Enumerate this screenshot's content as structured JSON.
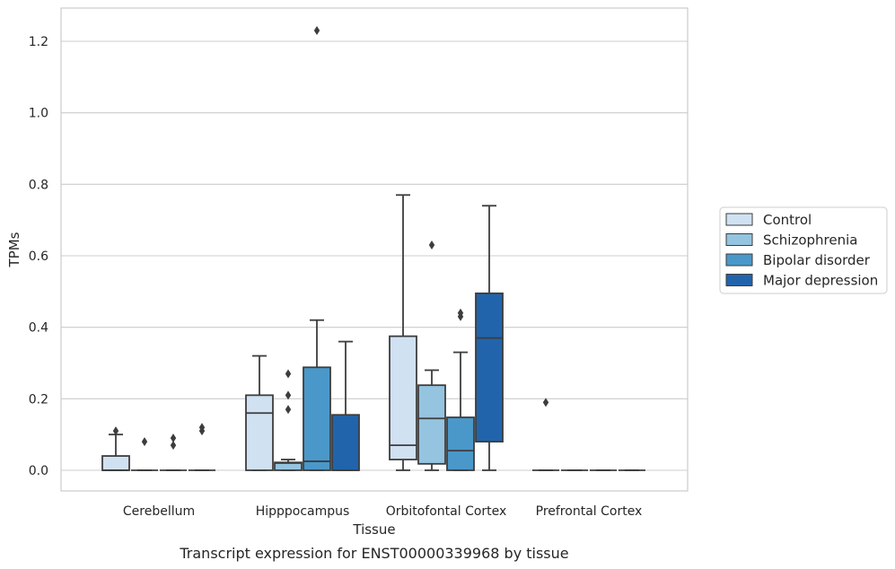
{
  "chart_data": {
    "type": "box",
    "caption": "Transcript expression for ENST00000339968 by tissue",
    "xlabel": "Tissue",
    "ylabel": "TPMs",
    "ylim": [
      -0.06,
      1.29
    ],
    "yticks": [
      "0.0",
      "0.2",
      "0.4",
      "0.6",
      "0.8",
      "1.0",
      "1.2"
    ],
    "ytick_values": [
      0.0,
      0.2,
      0.4,
      0.6,
      0.8,
      1.0,
      1.2
    ],
    "grid": "horizontal",
    "legend_position": "right",
    "categories": [
      "Cerebellum",
      "Hipppocampus",
      "Orbitofontal Cortex",
      "Prefrontal Cortex"
    ],
    "series": [
      {
        "name": "Control",
        "color": "#d0e1f2",
        "boxes": [
          {
            "whislo": 0.0,
            "q1": 0.0,
            "med": 0.0,
            "q3": 0.04,
            "whishi": 0.1,
            "fliers": [
              0.11
            ]
          },
          {
            "whislo": 0.0,
            "q1": 0.0,
            "med": 0.16,
            "q3": 0.21,
            "whishi": 0.32,
            "fliers": []
          },
          {
            "whislo": 0.0,
            "q1": 0.03,
            "med": 0.07,
            "q3": 0.375,
            "whishi": 0.77,
            "fliers": []
          },
          {
            "whislo": 0.0,
            "q1": 0.0,
            "med": 0.0,
            "q3": 0.0,
            "whishi": 0.0,
            "fliers": [
              0.19
            ]
          }
        ]
      },
      {
        "name": "Schizophrenia",
        "color": "#94c4df",
        "boxes": [
          {
            "whislo": 0.0,
            "q1": 0.0,
            "med": 0.0,
            "q3": 0.0,
            "whishi": 0.0,
            "fliers": [
              0.08
            ]
          },
          {
            "whislo": 0.0,
            "q1": 0.0,
            "med": 0.02,
            "q3": 0.022,
            "whishi": 0.03,
            "fliers": [
              0.17,
              0.21,
              0.27
            ]
          },
          {
            "whislo": 0.0,
            "q1": 0.018,
            "med": 0.145,
            "q3": 0.238,
            "whishi": 0.28,
            "fliers": [
              0.63
            ]
          },
          {
            "whislo": 0.0,
            "q1": 0.0,
            "med": 0.0,
            "q3": 0.0,
            "whishi": 0.0,
            "fliers": []
          }
        ]
      },
      {
        "name": "Bipolar disorder",
        "color": "#4a98c9",
        "boxes": [
          {
            "whislo": 0.0,
            "q1": 0.0,
            "med": 0.0,
            "q3": 0.0,
            "whishi": 0.0,
            "fliers": [
              0.07,
              0.09
            ]
          },
          {
            "whislo": 0.0,
            "q1": 0.0,
            "med": 0.025,
            "q3": 0.288,
            "whishi": 0.42,
            "fliers": [
              1.23
            ]
          },
          {
            "whislo": 0.0,
            "q1": 0.0,
            "med": 0.055,
            "q3": 0.148,
            "whishi": 0.33,
            "fliers": [
              0.43,
              0.44
            ]
          },
          {
            "whislo": 0.0,
            "q1": 0.0,
            "med": 0.0,
            "q3": 0.0,
            "whishi": 0.0,
            "fliers": []
          }
        ]
      },
      {
        "name": "Major depression",
        "color": "#2164ab",
        "boxes": [
          {
            "whislo": 0.0,
            "q1": 0.0,
            "med": 0.0,
            "q3": 0.0,
            "whishi": 0.0,
            "fliers": [
              0.11,
              0.12
            ]
          },
          {
            "whislo": 0.0,
            "q1": 0.0,
            "med": 0.0,
            "q3": 0.155,
            "whishi": 0.36,
            "fliers": []
          },
          {
            "whislo": 0.0,
            "q1": 0.08,
            "med": 0.37,
            "q3": 0.495,
            "whishi": 0.74,
            "fliers": []
          },
          {
            "whislo": 0.0,
            "q1": 0.0,
            "med": 0.0,
            "q3": 0.0,
            "whishi": 0.0,
            "fliers": []
          }
        ]
      }
    ]
  }
}
